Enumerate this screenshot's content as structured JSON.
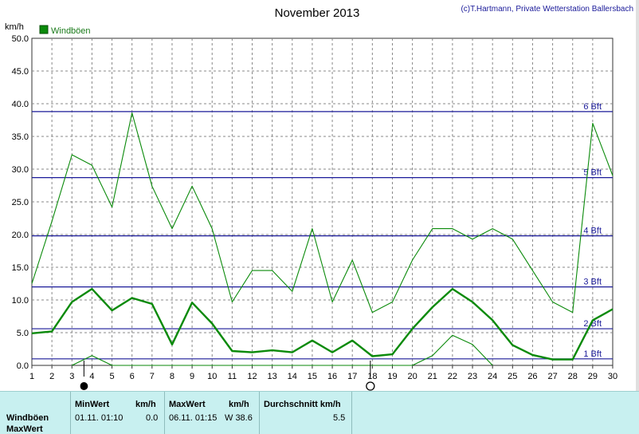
{
  "header": {
    "title": "November 2013",
    "credit": "(c)T.Hartmann, Private Wetterstation Ballersbach"
  },
  "chart_data": {
    "type": "line",
    "ylabel": "km/h",
    "ylim": [
      0,
      50
    ],
    "yticks": [
      "0.0",
      "5.0",
      "10.0",
      "15.0",
      "20.0",
      "25.0",
      "30.0",
      "35.0",
      "40.0",
      "45.0",
      "50.0"
    ],
    "x": [
      1,
      2,
      3,
      4,
      5,
      6,
      7,
      8,
      9,
      10,
      11,
      12,
      13,
      14,
      15,
      16,
      17,
      18,
      19,
      20,
      21,
      22,
      23,
      24,
      25,
      26,
      27,
      28,
      29,
      30
    ],
    "xticks": [
      "1",
      "2",
      "3",
      "4",
      "5",
      "6",
      "7",
      "8",
      "9",
      "10",
      "11",
      "12",
      "13",
      "14",
      "15",
      "16",
      "17",
      "18",
      "19",
      "20",
      "21",
      "22",
      "23",
      "24",
      "25",
      "26",
      "27",
      "28",
      "29",
      "30"
    ],
    "legend": {
      "label": "Windböen",
      "placement": "top-left",
      "color": "#0a8a0a"
    },
    "grid": true,
    "series": [
      {
        "name": "Windböen",
        "role": "max",
        "color": "#0a8a0a",
        "values": [
          12.5,
          22.0,
          32.2,
          30.6,
          24.2,
          38.6,
          27.4,
          20.9,
          27.4,
          20.9,
          9.7,
          14.5,
          14.5,
          11.3,
          20.9,
          9.7,
          16.1,
          8.1,
          9.7,
          16.1,
          20.9,
          20.9,
          19.3,
          20.9,
          19.3,
          14.5,
          9.7,
          8.1,
          37.0,
          29.0
        ]
      },
      {
        "name": "Windböen",
        "role": "avg",
        "color": "#0a8a0a",
        "values": [
          4.9,
          5.2,
          9.7,
          11.7,
          8.4,
          10.3,
          9.4,
          3.2,
          9.6,
          6.4,
          2.2,
          2.0,
          2.3,
          2.0,
          3.8,
          2.0,
          3.8,
          1.4,
          1.7,
          5.6,
          8.9,
          11.7,
          9.7,
          6.9,
          3.1,
          1.6,
          0.9,
          0.9,
          6.9,
          8.6
        ]
      },
      {
        "name": "Windböen",
        "role": "min",
        "color": "#0a8a0a",
        "x": [
          3,
          4,
          5,
          20,
          21,
          22,
          23,
          24
        ],
        "values": [
          0.0,
          1.5,
          0.0,
          0.0,
          1.5,
          4.6,
          3.2,
          0.0
        ]
      }
    ],
    "reference_lines": [
      {
        "label": "1 Bft",
        "value": 1.0
      },
      {
        "label": "2 Bft",
        "value": 5.6
      },
      {
        "label": "3 Bft",
        "value": 12.0
      },
      {
        "label": "4 Bft",
        "value": 19.8
      },
      {
        "label": "5 Bft",
        "value": 28.7
      },
      {
        "label": "6 Bft",
        "value": 38.8
      }
    ],
    "reference_color": "#1a1a99",
    "moon_markers": [
      {
        "day": 3.6,
        "icon": "new-moon-icon"
      },
      {
        "day": 17.9,
        "icon": "full-moon-icon"
      }
    ]
  },
  "stats": {
    "row1": "Windböen",
    "row2": "MaxWert",
    "min_header": "MinWert",
    "min_unit": "km/h",
    "min_time": "01.11.  01:10",
    "min_value": "0.0",
    "max_header": "MaxWert",
    "max_unit": "km/h",
    "max_time": "06.11.  01:15",
    "max_value": "W 38.6",
    "avg_header": "Durchschnitt km/h",
    "avg_value": "5.5"
  }
}
